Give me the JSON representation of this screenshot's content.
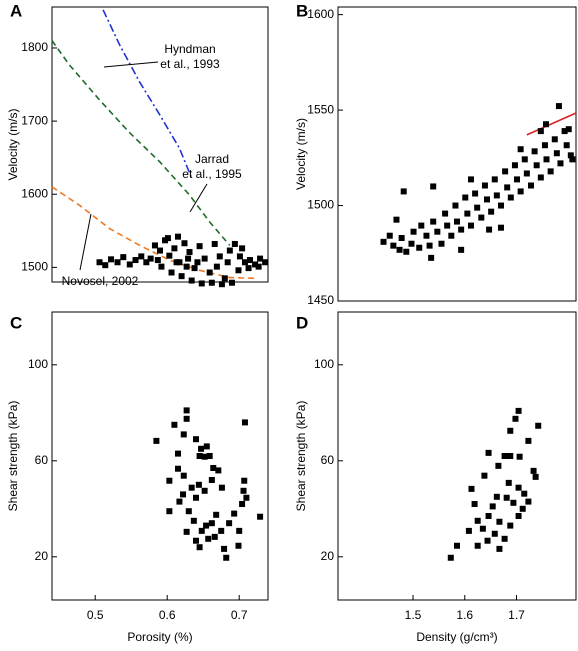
{
  "chart_data": [
    {
      "type": "scatter",
      "panel_label": "A",
      "y_label": "Velocity (m/s)",
      "xlim": [
        0.44,
        0.74
      ],
      "ylim": [
        1480,
        1856
      ],
      "yticks": [
        1500,
        1600,
        1700,
        1800
      ],
      "series": [
        {
          "color": "#000000",
          "x": [
            0.506,
            0.514,
            0.522,
            0.531,
            0.539,
            0.548,
            0.556,
            0.564,
            0.571,
            0.577,
            0.583,
            0.59,
            0.597,
            0.603,
            0.61,
            0.617,
            0.624,
            0.631,
            0.638,
            0.645,
            0.652,
            0.659,
            0.666,
            0.673,
            0.68,
            0.687,
            0.592,
            0.606,
            0.62,
            0.634,
            0.648,
            0.662,
            0.676,
            0.69,
            0.601,
            0.615,
            0.629,
            0.642,
            0.701,
            0.708,
            0.715,
            0.722,
            0.729,
            0.736,
            0.699,
            0.713,
            0.727,
            0.694,
            0.704,
            0.669,
            0.684,
            0.627,
            0.613,
            0.587
          ],
          "y": [
            1507,
            1503,
            1511,
            1507,
            1514,
            1504,
            1510,
            1515,
            1507,
            1512,
            1530,
            1523,
            1537,
            1516,
            1526,
            1507,
            1533,
            1521,
            1499,
            1529,
            1512,
            1493,
            1532,
            1515,
            1485,
            1523,
            1501,
            1493,
            1488,
            1482,
            1478,
            1479,
            1477,
            1479,
            1540,
            1542,
            1512,
            1507,
            1515,
            1507,
            1510,
            1504,
            1512,
            1507,
            1496,
            1499,
            1501,
            1532,
            1526,
            1501,
            1507,
            1501,
            1507,
            1510
          ]
        }
      ],
      "lines": [
        {
          "color": "#2233cc",
          "dash": "dashdot",
          "x": [
            0.511,
            0.534,
            0.562,
            0.59,
            0.617,
            0.634
          ],
          "y": [
            1852,
            1804,
            1753,
            1708,
            1663,
            1622
          ]
        },
        {
          "color": "#1e6b2a",
          "dash": "dash",
          "x": [
            0.44,
            0.464,
            0.506,
            0.547,
            0.59,
            0.631,
            0.659,
            0.687
          ],
          "y": [
            1810,
            1777,
            1729,
            1685,
            1644,
            1599,
            1562,
            1530
          ]
        },
        {
          "color": "#f07a22",
          "dash": "dash",
          "x": [
            0.44,
            0.478,
            0.52,
            0.562,
            0.603,
            0.645,
            0.687,
            0.722
          ],
          "y": [
            1610,
            1585,
            1553,
            1530,
            1510,
            1496,
            1486,
            1485
          ]
        }
      ],
      "annotations": [
        {
          "lines": [
            "Hyndman",
            "et al., 1993"
          ]
        },
        {
          "lines": [
            "Jarrad",
            "et al., 1995"
          ]
        },
        {
          "lines": [
            "Novosel, 2002"
          ]
        }
      ]
    },
    {
      "type": "scatter",
      "panel_label": "B",
      "y_label": "Velocity (m/s)",
      "xlim": [
        1.355,
        1.815
      ],
      "ylim": [
        1450,
        1604
      ],
      "yticks": [
        1450,
        1500,
        1550,
        1600
      ],
      "series": [
        {
          "color": "#000000",
          "x": [
            1.443,
            1.455,
            1.462,
            1.474,
            1.478,
            1.487,
            1.497,
            1.501,
            1.512,
            1.516,
            1.526,
            1.532,
            1.539,
            1.547,
            1.555,
            1.562,
            1.566,
            1.574,
            1.582,
            1.585,
            1.593,
            1.601,
            1.605,
            1.612,
            1.62,
            1.624,
            1.632,
            1.639,
            1.643,
            1.651,
            1.658,
            1.662,
            1.67,
            1.678,
            1.682,
            1.689,
            1.697,
            1.701,
            1.708,
            1.716,
            1.72,
            1.728,
            1.735,
            1.739,
            1.747,
            1.755,
            1.758,
            1.766,
            1.774,
            1.778,
            1.785,
            1.793,
            1.797,
            1.805,
            1.782,
            1.808,
            1.468,
            1.535,
            1.593,
            1.67,
            1.708,
            1.747,
            1.612,
            1.647,
            1.801,
            1.757,
            1.482,
            1.539
          ],
          "y": [
            1481,
            1484.2,
            1479,
            1476.8,
            1483,
            1475.8,
            1480,
            1486.3,
            1477.9,
            1489.5,
            1484.2,
            1479,
            1491.6,
            1486.3,
            1480,
            1495.8,
            1489.5,
            1484.2,
            1500,
            1491.6,
            1487.4,
            1504.2,
            1495.8,
            1489.5,
            1506.3,
            1498.9,
            1493.7,
            1510.5,
            1503.2,
            1496.8,
            1513.7,
            1505.3,
            1500,
            1517.9,
            1509.5,
            1504.2,
            1521.1,
            1513.7,
            1507.4,
            1524.2,
            1516.8,
            1510.5,
            1528.4,
            1521.1,
            1514.7,
            1531.6,
            1524.2,
            1517.9,
            1534.7,
            1527.4,
            1522.1,
            1539,
            1531.6,
            1526.3,
            1552.1,
            1524.2,
            1492.6,
            1472.6,
            1476.8,
            1488.4,
            1529.5,
            1539,
            1513.7,
            1487.4,
            1540,
            1542.6,
            1507.4,
            1510
          ]
        }
      ],
      "lines": [
        {
          "color": "#dd2222",
          "dash": "solid",
          "x": [
            1.72,
            1.815
          ],
          "y": [
            1537,
            1548.5
          ]
        }
      ]
    },
    {
      "type": "scatter",
      "panel_label": "C",
      "y_label": "Shear strength (kPa)",
      "x_label": "Porosity (%)",
      "xlim": [
        0.44,
        0.74
      ],
      "xticks": [
        0.5,
        0.6,
        0.7
      ],
      "ylim": [
        2,
        122
      ],
      "yticks": [
        20,
        60,
        100
      ],
      "series": [
        {
          "color": "#000000",
          "x": [
            0.585,
            0.627,
            0.627,
            0.61,
            0.623,
            0.615,
            0.64,
            0.647,
            0.655,
            0.615,
            0.623,
            0.603,
            0.645,
            0.652,
            0.659,
            0.664,
            0.671,
            0.662,
            0.644,
            0.634,
            0.622,
            0.64,
            0.652,
            0.676,
            0.708,
            0.707,
            0.706,
            0.71,
            0.704,
            0.617,
            0.63,
            0.637,
            0.627,
            0.64,
            0.645,
            0.654,
            0.662,
            0.668,
            0.675,
            0.666,
            0.657,
            0.679,
            0.686,
            0.693,
            0.7,
            0.699,
            0.729,
            0.603,
            0.648,
            0.682
          ],
          "y": [
            68.3,
            81,
            77.5,
            75,
            71,
            63,
            69,
            65,
            66,
            56.7,
            53.8,
            51.7,
            62,
            61.7,
            62,
            57,
            56,
            52,
            50,
            48.8,
            46,
            44.6,
            47.5,
            48.8,
            76,
            51.7,
            47.5,
            44.6,
            42,
            43,
            39,
            35,
            30.4,
            26.7,
            24,
            33,
            34,
            37.5,
            30.8,
            28.3,
            27.5,
            23.3,
            34,
            38,
            30.8,
            24.6,
            36.7,
            39,
            30.8,
            19.6
          ]
        }
      ]
    },
    {
      "type": "scatter",
      "panel_label": "D",
      "y_label": "Shear strength (kPa)",
      "x_label": "Density (g/cm³)",
      "xlim": [
        1.355,
        1.815
      ],
      "xticks": [
        1.5,
        1.6,
        1.7
      ],
      "ylim": [
        2,
        122
      ],
      "yticks": [
        20,
        60,
        100
      ],
      "series": [
        {
          "color": "#000000",
          "x": [
            1.704,
            1.698,
            1.742,
            1.688,
            1.723,
            1.646,
            1.677,
            1.688,
            1.706,
            1.665,
            1.733,
            1.638,
            1.737,
            1.613,
            1.685,
            1.704,
            1.715,
            1.662,
            1.681,
            1.694,
            1.619,
            1.712,
            1.646,
            1.625,
            1.667,
            1.688,
            1.608,
            1.635,
            1.658,
            1.677,
            1.644,
            1.625,
            1.667,
            1.585,
            1.573,
            1.704,
            1.723,
            1.654
          ],
          "y": [
            80.8,
            77.5,
            74.6,
            72.5,
            68.3,
            63.3,
            62,
            62,
            61.7,
            57.9,
            55.8,
            53.8,
            53.3,
            48.3,
            50.8,
            48.8,
            46.3,
            45,
            44.6,
            42.5,
            42,
            40,
            37,
            35,
            34.6,
            33,
            30.8,
            31.7,
            29.6,
            27.5,
            26.7,
            24.6,
            23.3,
            24.6,
            19.6,
            37,
            43,
            41
          ]
        }
      ]
    }
  ]
}
